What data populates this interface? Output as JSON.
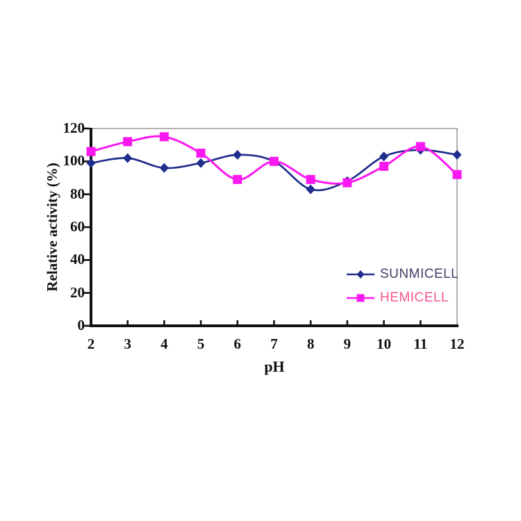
{
  "figure": {
    "background": "#ffffff"
  },
  "chart_data": {
    "type": "line",
    "title": "",
    "xlabel": "pH",
    "ylabel": "Relative activity (%)",
    "x": [
      2,
      3,
      4,
      5,
      6,
      7,
      8,
      9,
      10,
      11,
      12
    ],
    "xlim": [
      2,
      12
    ],
    "ylim": [
      0,
      120
    ],
    "xticks": [
      2,
      3,
      4,
      5,
      6,
      7,
      8,
      9,
      10,
      11,
      12
    ],
    "yticks": [
      0,
      20,
      40,
      60,
      80,
      100,
      120
    ],
    "grid": false,
    "smooth_lines": true,
    "legend_position": "inside-bottom-right",
    "series": [
      {
        "name": "SUNMICELL",
        "marker": "diamond",
        "color": "#1f2d8c",
        "label_color": "#40406a",
        "values": [
          99,
          102,
          96,
          99,
          104,
          100,
          83,
          88,
          103,
          107,
          104
        ]
      },
      {
        "name": "HEMICELL",
        "marker": "square",
        "color": "#fa18f0",
        "label_color": "#f25795",
        "values": [
          106,
          112,
          115,
          105,
          89,
          100,
          89,
          87,
          97,
          109,
          92
        ]
      }
    ],
    "colors": {
      "axis": "#111111",
      "plot_border": "#999999",
      "tick_text": "#111111"
    }
  }
}
